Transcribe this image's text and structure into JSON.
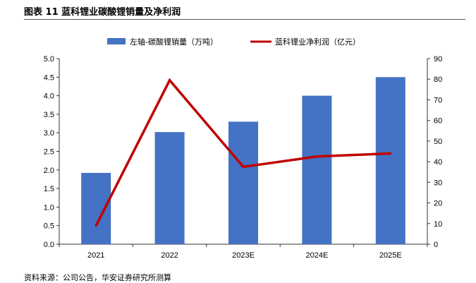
{
  "title": "图表 11  蓝科锂业碳酸锂销量及净利润",
  "source": "资料来源：公司公告，华安证券研究所测算",
  "chart_data": {
    "type": "bar+line",
    "categories": [
      "2021",
      "2022",
      "2023E",
      "2024E",
      "2025E"
    ],
    "series": [
      {
        "name": "左轴-碳酸锂销量（万吨）",
        "type": "bar",
        "axis": "left",
        "color": "#4472C4",
        "values": [
          1.92,
          3.02,
          3.3,
          4.0,
          4.5
        ]
      },
      {
        "name": "蓝科锂业净利润（亿元）",
        "type": "line",
        "axis": "right",
        "color": "#C00000",
        "values": [
          9,
          79.5,
          37.5,
          42.5,
          44
        ]
      }
    ],
    "y_left": {
      "min": 0,
      "max": 5,
      "ticks": [
        "0.0",
        "0.5",
        "1.0",
        "1.5",
        "2.0",
        "2.5",
        "3.0",
        "3.5",
        "4.0",
        "4.5",
        "5.0"
      ]
    },
    "y_right": {
      "min": 0,
      "max": 90,
      "ticks": [
        "0",
        "10",
        "20",
        "30",
        "40",
        "50",
        "60",
        "70",
        "80",
        "90"
      ]
    },
    "grid": false,
    "legend_position": "top"
  }
}
